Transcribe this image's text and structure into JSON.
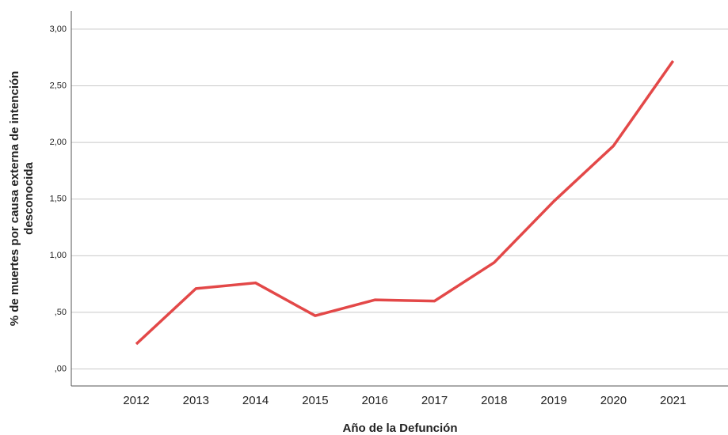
{
  "chart_data": {
    "type": "line",
    "xlabel": "Año de la Defunción",
    "ylabel": [
      "% de muertes por causa externa de intención",
      "desconocida"
    ],
    "categories": [
      "2012",
      "2013",
      "2014",
      "2015",
      "2016",
      "2017",
      "2018",
      "2019",
      "2020",
      "2021"
    ],
    "series": [
      {
        "name": "% de muertes por causa externa de intención desconocida",
        "color": "#e34848",
        "values": [
          0.22,
          0.71,
          0.76,
          0.47,
          0.61,
          0.6,
          0.94,
          1.48,
          1.97,
          2.72
        ]
      }
    ],
    "ylim": [
      -0.15,
      3.16
    ],
    "yticks": [
      {
        "value": 0,
        "label": ",00"
      },
      {
        "value": 0.5,
        "label": ",50"
      },
      {
        "value": 1,
        "label": "1,00"
      },
      {
        "value": 1.5,
        "label": "1,50"
      },
      {
        "value": 2,
        "label": "2,00"
      },
      {
        "value": 2.5,
        "label": "2,50"
      },
      {
        "value": 3,
        "label": "3,00"
      }
    ],
    "grid": true
  }
}
